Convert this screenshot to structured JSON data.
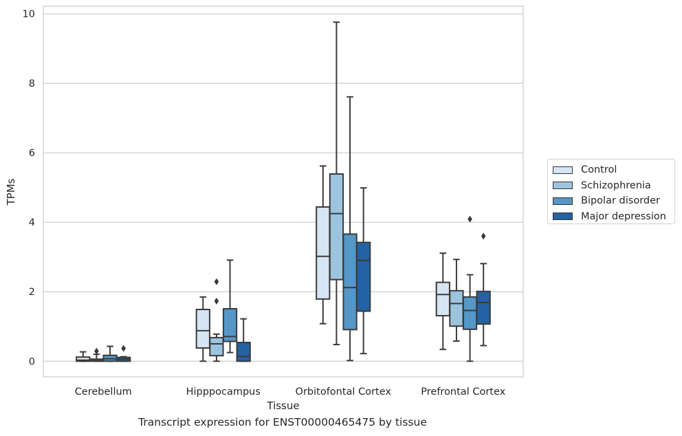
{
  "chart_data": {
    "type": "box",
    "title": "",
    "xlabel": "Tissue",
    "ylabel": "TPMs",
    "ylim": [
      -0.45,
      10.22
    ],
    "yticks": [
      0,
      2,
      4,
      6,
      8,
      10
    ],
    "grid": true,
    "legend_position": "outside-right",
    "categories": [
      "Cerebellum",
      "Hipppocampus",
      "Orbitofontal Cortex",
      "Prefrontal Cortex"
    ],
    "series": [
      {
        "name": "Control",
        "color": "#d6e5f3",
        "boxes": [
          {
            "whislo": 0.0,
            "q1": 0.0,
            "med": 0.03,
            "q3": 0.12,
            "whishi": 0.27,
            "fliers": []
          },
          {
            "whislo": 0.0,
            "q1": 0.38,
            "med": 0.88,
            "q3": 1.49,
            "whishi": 1.85,
            "fliers": []
          },
          {
            "whislo": 1.08,
            "q1": 1.79,
            "med": 3.02,
            "q3": 4.44,
            "whishi": 5.62,
            "fliers": []
          },
          {
            "whislo": 0.34,
            "q1": 1.31,
            "med": 1.92,
            "q3": 2.27,
            "whishi": 3.11,
            "fliers": []
          }
        ]
      },
      {
        "name": "Schizophrenia",
        "color": "#9dc4df",
        "boxes": [
          {
            "whislo": 0.0,
            "q1": 0.0,
            "med": 0.02,
            "q3": 0.06,
            "whishi": 0.2,
            "fliers": [
              0.29
            ]
          },
          {
            "whislo": 0.0,
            "q1": 0.16,
            "med": 0.5,
            "q3": 0.68,
            "whishi": 0.78,
            "fliers": [
              1.73,
              2.29
            ]
          },
          {
            "whislo": 0.48,
            "q1": 2.35,
            "med": 4.25,
            "q3": 5.39,
            "whishi": 9.76,
            "fliers": []
          },
          {
            "whislo": 0.58,
            "q1": 1.01,
            "med": 1.66,
            "q3": 2.03,
            "whishi": 2.93,
            "fliers": []
          }
        ]
      },
      {
        "name": "Bipolar disorder",
        "color": "#5597c6",
        "boxes": [
          {
            "whislo": 0.0,
            "q1": 0.0,
            "med": 0.07,
            "q3": 0.17,
            "whishi": 0.43,
            "fliers": []
          },
          {
            "whislo": 0.25,
            "q1": 0.57,
            "med": 0.71,
            "q3": 1.51,
            "whishi": 2.91,
            "fliers": []
          },
          {
            "whislo": 0.02,
            "q1": 0.91,
            "med": 2.12,
            "q3": 3.66,
            "whishi": 7.61,
            "fliers": []
          },
          {
            "whislo": 0.0,
            "q1": 0.92,
            "med": 1.46,
            "q3": 1.85,
            "whishi": 2.49,
            "fliers": [
              4.09
            ]
          }
        ]
      },
      {
        "name": "Major depression",
        "color": "#2462a4",
        "boxes": [
          {
            "whislo": 0.0,
            "q1": 0.0,
            "med": 0.06,
            "q3": 0.11,
            "whishi": 0.13,
            "fliers": [
              0.37
            ]
          },
          {
            "whislo": 0.0,
            "q1": 0.0,
            "med": 0.14,
            "q3": 0.54,
            "whishi": 1.22,
            "fliers": []
          },
          {
            "whislo": 0.22,
            "q1": 1.44,
            "med": 2.9,
            "q3": 3.42,
            "whishi": 4.99,
            "fliers": []
          },
          {
            "whislo": 0.45,
            "q1": 1.07,
            "med": 1.69,
            "q3": 2.01,
            "whishi": 2.81,
            "fliers": [
              3.6
            ]
          }
        ]
      }
    ],
    "caption": "Transcript expression for ENST00000465475 by tissue"
  }
}
